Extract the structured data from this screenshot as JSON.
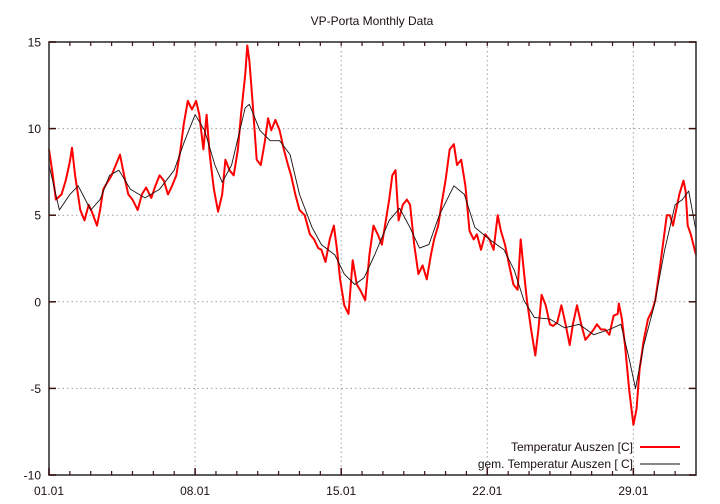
{
  "chart_data": {
    "type": "line",
    "title": "VP-Porta Monthly Data",
    "xlabel": "",
    "ylabel": "",
    "xlim": [
      0,
      31
    ],
    "ylim": [
      -10,
      15
    ],
    "grid": true,
    "legend_position": "bottom-right",
    "x_unit": "days since 01.01",
    "x_ticks": [
      {
        "value": 0,
        "label": "01.01"
      },
      {
        "value": 7,
        "label": "08.01"
      },
      {
        "value": 14,
        "label": "15.01"
      },
      {
        "value": 21,
        "label": "22.01"
      },
      {
        "value": 28,
        "label": "29.01"
      }
    ],
    "y_ticks": [
      {
        "value": -10,
        "label": "-10"
      },
      {
        "value": -5,
        "label": "-5"
      },
      {
        "value": 0,
        "label": "0"
      },
      {
        "value": 5,
        "label": "5"
      },
      {
        "value": 10,
        "label": "10"
      },
      {
        "value": 15,
        "label": "15"
      }
    ],
    "series": [
      {
        "name": "Temperatur Auszen [C]",
        "color": "#ff0000",
        "x": [
          0,
          0.15,
          0.33,
          0.6,
          0.8,
          1.0,
          1.1,
          1.25,
          1.5,
          1.7,
          1.9,
          2.05,
          2.3,
          2.45,
          2.6,
          2.8,
          3.0,
          3.2,
          3.4,
          3.6,
          3.8,
          4.0,
          4.25,
          4.45,
          4.65,
          4.9,
          5.1,
          5.3,
          5.5,
          5.7,
          5.9,
          6.1,
          6.3,
          6.45,
          6.65,
          6.85,
          7.05,
          7.2,
          7.4,
          7.55,
          7.7,
          7.9,
          8.1,
          8.3,
          8.45,
          8.65,
          8.85,
          9.05,
          9.2,
          9.4,
          9.5,
          9.6,
          9.75,
          9.95,
          10.15,
          10.35,
          10.5,
          10.65,
          10.85,
          11.05,
          11.25,
          11.45,
          11.6,
          11.8,
          12.0,
          12.25,
          12.5,
          12.7,
          12.9,
          13.05,
          13.25,
          13.45,
          13.65,
          13.8,
          13.95,
          14.15,
          14.35,
          14.55,
          14.75,
          14.9,
          15.15,
          15.35,
          15.55,
          15.75,
          15.95,
          16.1,
          16.3,
          16.45,
          16.6,
          16.75,
          16.95,
          17.15,
          17.3,
          17.5,
          17.7,
          17.9,
          18.1,
          18.3,
          18.45,
          18.65,
          18.8,
          19.0,
          19.2,
          19.4,
          19.55,
          19.75,
          19.95,
          20.15,
          20.35,
          20.5,
          20.7,
          20.9,
          21.1,
          21.3,
          21.5,
          21.65,
          21.85,
          22.05,
          22.25,
          22.45,
          22.6,
          22.75,
          22.9,
          23.1,
          23.3,
          23.45,
          23.6,
          23.8,
          24.0,
          24.15,
          24.35,
          24.55,
          24.75,
          24.95,
          25.1,
          25.3,
          25.5,
          25.7,
          25.9,
          26.1,
          26.25,
          26.45,
          26.65,
          26.85,
          27.05,
          27.25,
          27.3,
          27.45,
          27.6,
          27.8,
          28.0,
          28.15,
          28.3,
          28.5,
          28.7,
          28.9,
          29.05,
          29.25,
          29.45,
          29.6,
          29.75,
          29.9,
          30.0,
          30.2,
          30.4,
          30.5,
          30.6,
          30.75,
          31.0
        ],
        "y": [
          8.8,
          7.6,
          5.9,
          6.2,
          7.0,
          8.1,
          8.9,
          7.3,
          5.3,
          4.7,
          5.6,
          5.2,
          4.4,
          5.3,
          6.5,
          6.9,
          7.3,
          7.9,
          8.5,
          7.3,
          6.2,
          5.9,
          5.3,
          6.2,
          6.6,
          6.0,
          6.7,
          7.3,
          7.0,
          6.2,
          6.7,
          7.3,
          8.8,
          10.2,
          11.6,
          11.1,
          11.6,
          10.8,
          8.8,
          10.8,
          8.5,
          6.5,
          5.2,
          6.2,
          8.2,
          7.6,
          7.3,
          8.8,
          10.8,
          13.1,
          14.8,
          13.9,
          11.6,
          8.2,
          7.9,
          9.3,
          10.6,
          9.9,
          10.5,
          9.9,
          8.8,
          7.9,
          7.3,
          6.2,
          5.3,
          5.0,
          3.9,
          3.6,
          3.1,
          3.0,
          2.3,
          3.6,
          4.4,
          3.0,
          1.3,
          -0.2,
          -0.7,
          2.4,
          1.0,
          0.7,
          0.1,
          2.7,
          4.4,
          3.9,
          3.3,
          4.4,
          5.9,
          7.3,
          7.6,
          4.7,
          5.6,
          5.9,
          5.6,
          3.3,
          1.6,
          2.1,
          1.3,
          2.7,
          3.6,
          4.4,
          5.6,
          7.0,
          8.8,
          9.1,
          7.9,
          8.2,
          6.7,
          4.1,
          3.6,
          3.9,
          3.0,
          3.9,
          3.6,
          3.0,
          5.0,
          4.1,
          3.3,
          2.1,
          1.0,
          0.7,
          3.6,
          1.8,
          0.1,
          -1.6,
          -3.1,
          -1.6,
          0.4,
          -0.2,
          -1.3,
          -1.4,
          -1.2,
          -0.2,
          -1.3,
          -2.5,
          -1.3,
          -0.2,
          -1.3,
          -2.2,
          -1.9,
          -1.6,
          -1.3,
          -1.6,
          -1.6,
          -1.9,
          -0.8,
          -0.7,
          -0.1,
          -1.0,
          -2.5,
          -5.1,
          -7.1,
          -6.2,
          -3.9,
          -2.2,
          -1.0,
          -0.5,
          0.1,
          1.8,
          3.6,
          5.0,
          5.0,
          4.4,
          5.0,
          6.2,
          7.0,
          6.4,
          4.4,
          3.9,
          2.7
        ]
      },
      {
        "name": "gem. Temperatur Auszen [ C]",
        "color": "#1a0f0f",
        "x": [
          0,
          0.5,
          1.0,
          1.4,
          2.0,
          2.45,
          2.9,
          3.35,
          3.9,
          4.6,
          5.3,
          6.0,
          6.5,
          7.0,
          7.45,
          7.95,
          8.3,
          8.75,
          9.4,
          9.6,
          10.1,
          10.6,
          11.05,
          11.55,
          12.0,
          12.6,
          13.05,
          13.7,
          14.15,
          14.65,
          15.1,
          15.6,
          16.3,
          16.8,
          17.25,
          17.75,
          18.2,
          18.7,
          19.4,
          19.9,
          20.4,
          21.1,
          21.8,
          22.3,
          22.75,
          23.25,
          24.0,
          24.7,
          25.4,
          26.1,
          26.85,
          27.4,
          27.8,
          28.1,
          28.5,
          29.0,
          29.5,
          30.0,
          30.35,
          30.65,
          31.0
        ],
        "y": [
          7.9,
          5.3,
          6.2,
          6.7,
          5.3,
          5.9,
          7.3,
          7.6,
          6.5,
          6.0,
          6.5,
          7.6,
          9.3,
          10.8,
          9.9,
          7.9,
          6.9,
          7.9,
          11.2,
          11.4,
          9.9,
          9.3,
          9.3,
          8.5,
          6.2,
          4.3,
          3.3,
          2.7,
          1.6,
          1.0,
          1.4,
          2.7,
          4.7,
          5.4,
          4.4,
          3.1,
          3.3,
          5.0,
          6.7,
          6.2,
          4.3,
          3.6,
          3.0,
          1.8,
          0.1,
          -0.9,
          -1.0,
          -1.5,
          -1.3,
          -1.9,
          -1.6,
          -1.3,
          -3.3,
          -5.0,
          -2.5,
          -0.2,
          3.0,
          5.6,
          5.9,
          6.4,
          4.1
        ]
      }
    ]
  }
}
